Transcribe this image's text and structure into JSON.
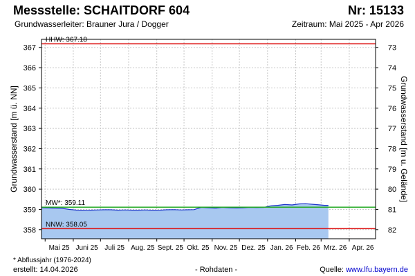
{
  "header": {
    "title": "Messstelle: SCHAITDORF 604",
    "number": "Nr: 15133",
    "aquifer": "Grundwasserleiter:   Brauner Jura / Dogger",
    "period": "Zeitraum: Mai 2025 - Apr 2026"
  },
  "footer": {
    "footnote": "* Abflussjahr (1976-2024)",
    "created": "erstellt:  14.04.2026",
    "raw_data": "- Rohdaten -",
    "source_label": "Quelle: ",
    "source_link": "www.lfu.bayern.de"
  },
  "colors": {
    "fill": "#a8c8f0",
    "line": "#1a32c8",
    "hhw": "#dd1111",
    "nnw": "#dd1111",
    "mw": "#22aa22",
    "grid": "#c8c8c8"
  },
  "chart_data": {
    "type": "area",
    "ylabel": "Grundwasserstand [m ü. NN]",
    "y2label": "Grundwasserstand [m u. Gelände]",
    "ylim": [
      357.55,
      367.4
    ],
    "yticks": [
      358,
      359,
      360,
      361,
      362,
      363,
      364,
      365,
      366,
      367
    ],
    "y2ticks": [
      73,
      74,
      75,
      76,
      77,
      78,
      79,
      80,
      81,
      82
    ],
    "ground_level": 440,
    "grid": true,
    "x_start": "2025-04-27",
    "x_end": "2026-04-30",
    "x_ticks": [
      {
        "date": "2025-05-01",
        "label": "Mai 25"
      },
      {
        "date": "2025-06-01",
        "label": "Juni 25"
      },
      {
        "date": "2025-07-01",
        "label": "Juli 25"
      },
      {
        "date": "2025-08-01",
        "label": "Aug. 25"
      },
      {
        "date": "2025-09-01",
        "label": "Sept. 25"
      },
      {
        "date": "2025-10-01",
        "label": "Okt. 25"
      },
      {
        "date": "2025-11-01",
        "label": "Nov. 25"
      },
      {
        "date": "2025-12-01",
        "label": "Dez. 25"
      },
      {
        "date": "2026-01-01",
        "label": "Jan. 26"
      },
      {
        "date": "2026-02-01",
        "label": "Feb. 26"
      },
      {
        "date": "2026-03-01",
        "label": "Mrz. 26"
      },
      {
        "date": "2026-04-01",
        "label": "Apr. 26"
      }
    ],
    "reference_lines": [
      {
        "name": "HHW",
        "label": "HHW: 367.18",
        "value": 367.18
      },
      {
        "name": "MW",
        "label": "MW*: 359.11",
        "value": 359.11
      },
      {
        "name": "NNW",
        "label": "NNW: 358.05",
        "value": 358.05
      }
    ],
    "series": [
      {
        "x": [
          "2025-04-27",
          "2025-05-05",
          "2025-05-12",
          "2025-05-20",
          "2025-05-28",
          "2025-06-05",
          "2025-06-12",
          "2025-06-20",
          "2025-06-28",
          "2025-07-05",
          "2025-07-12",
          "2025-07-20",
          "2025-07-28",
          "2025-08-05",
          "2025-08-12",
          "2025-08-20",
          "2025-08-28",
          "2025-09-05",
          "2025-09-12",
          "2025-09-20",
          "2025-09-28",
          "2025-10-05",
          "2025-10-12",
          "2025-10-20",
          "2025-10-28",
          "2025-11-05",
          "2025-11-12",
          "2025-11-20",
          "2025-11-28",
          "2025-12-05",
          "2025-12-12",
          "2025-12-20",
          "2025-12-28",
          "2026-01-05",
          "2026-01-12",
          "2026-01-20",
          "2026-01-28",
          "2026-02-05",
          "2026-02-12",
          "2026-02-20",
          "2026-02-28",
          "2026-03-05",
          "2026-03-09"
        ],
        "values": [
          359.08,
          359.07,
          359.06,
          359.05,
          359.0,
          358.96,
          358.95,
          358.96,
          358.97,
          358.98,
          358.98,
          358.96,
          358.97,
          358.96,
          358.96,
          358.97,
          358.95,
          358.96,
          358.98,
          358.99,
          358.97,
          358.98,
          358.99,
          359.1,
          359.08,
          359.06,
          359.1,
          359.08,
          359.07,
          359.08,
          359.1,
          359.09,
          359.1,
          359.18,
          359.2,
          359.24,
          359.22,
          359.27,
          359.28,
          359.25,
          359.22,
          359.2,
          359.2
        ]
      }
    ]
  }
}
